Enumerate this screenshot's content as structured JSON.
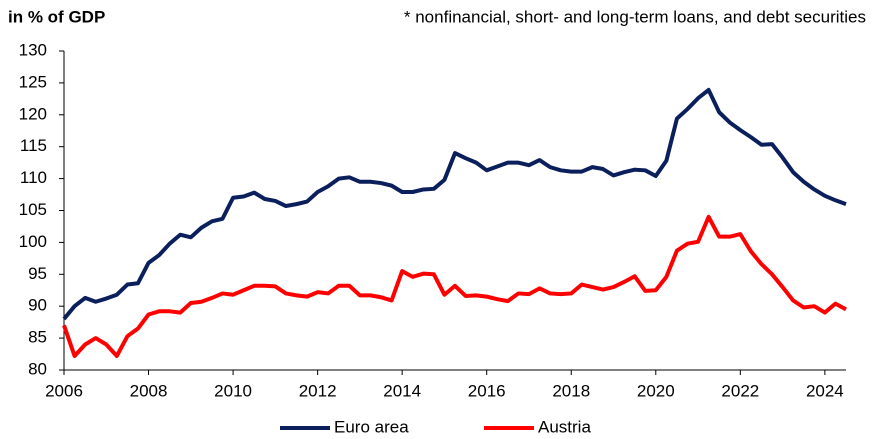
{
  "chart_data": {
    "type": "line",
    "title": "in % of GDP",
    "subtitle": "* nonfinancial, short- and long-term loans, and debt securities",
    "x": [
      2006,
      2006.25,
      2006.5,
      2006.75,
      2007,
      2007.25,
      2007.5,
      2007.75,
      2008,
      2008.25,
      2008.5,
      2008.75,
      2009,
      2009.25,
      2009.5,
      2009.75,
      2010,
      2010.25,
      2010.5,
      2010.75,
      2011,
      2011.25,
      2011.5,
      2011.75,
      2012,
      2012.25,
      2012.5,
      2012.75,
      2013,
      2013.25,
      2013.5,
      2013.75,
      2014,
      2014.25,
      2014.5,
      2014.75,
      2015,
      2015.25,
      2015.5,
      2015.75,
      2016,
      2016.25,
      2016.5,
      2016.75,
      2017,
      2017.25,
      2017.5,
      2017.75,
      2018,
      2018.25,
      2018.5,
      2018.75,
      2019,
      2019.25,
      2019.5,
      2019.75,
      2020,
      2020.25,
      2020.5,
      2020.75,
      2021,
      2021.25,
      2021.5,
      2021.75,
      2022,
      2022.25,
      2022.5,
      2022.75,
      2023,
      2023.25,
      2023.5,
      2023.75,
      2024,
      2024.25,
      2024.5
    ],
    "series": [
      {
        "name": "Euro area",
        "color": "#0b1f5c",
        "values": [
          88,
          90,
          91.3,
          90.7,
          91.2,
          91.8,
          93.4,
          93.6,
          96.8,
          98,
          99.8,
          101.2,
          100.8,
          102.3,
          103.3,
          103.7,
          107,
          107.2,
          107.8,
          106.8,
          106.5,
          105.7,
          106,
          106.4,
          107.9,
          108.8,
          110,
          110.2,
          109.5,
          109.5,
          109.3,
          108.9,
          107.9,
          107.9,
          108.3,
          108.4,
          109.8,
          114,
          113.2,
          112.5,
          111.3,
          111.9,
          112.5,
          112.5,
          112.1,
          112.9,
          111.8,
          111.3,
          111.1,
          111.1,
          111.8,
          111.5,
          110.5,
          111,
          111.4,
          111.3,
          110.4,
          112.8,
          119.4,
          120.9,
          122.6,
          123.9,
          120.4,
          118.8,
          117.6,
          116.5,
          115.3,
          115.4,
          113.3,
          111,
          109.5,
          108.3,
          107.3,
          106.6,
          106
        ]
      },
      {
        "name": "Austria",
        "color": "#ff0000",
        "values": [
          87,
          82.2,
          84,
          85,
          84,
          82.2,
          85.3,
          86.5,
          88.7,
          89.2,
          89.2,
          89,
          90.5,
          90.7,
          91.3,
          92,
          91.8,
          92.5,
          93.2,
          93.2,
          93.1,
          92,
          91.7,
          91.5,
          92.2,
          92,
          93.2,
          93.2,
          91.7,
          91.7,
          91.4,
          90.9,
          95.5,
          94.6,
          95.1,
          95,
          91.8,
          93.2,
          91.6,
          91.7,
          91.5,
          91.1,
          90.8,
          92,
          91.9,
          92.8,
          92,
          91.9,
          92,
          93.4,
          93,
          92.6,
          93,
          93.8,
          94.7,
          92.4,
          92.5,
          94.6,
          98.7,
          99.8,
          100.1,
          104,
          100.9,
          100.9,
          101.3,
          98.6,
          96.6,
          95,
          93,
          90.9,
          89.8,
          90,
          89,
          90.4,
          89.5
        ]
      }
    ],
    "xlim": [
      2006,
      2024.5
    ],
    "xticks": [
      2006,
      2008,
      2010,
      2012,
      2014,
      2016,
      2018,
      2020,
      2022,
      2024
    ],
    "ylim": [
      80,
      130
    ],
    "yticks": [
      80,
      85,
      90,
      95,
      100,
      105,
      110,
      115,
      120,
      125,
      130
    ],
    "grid": false,
    "legend": "bottom"
  }
}
